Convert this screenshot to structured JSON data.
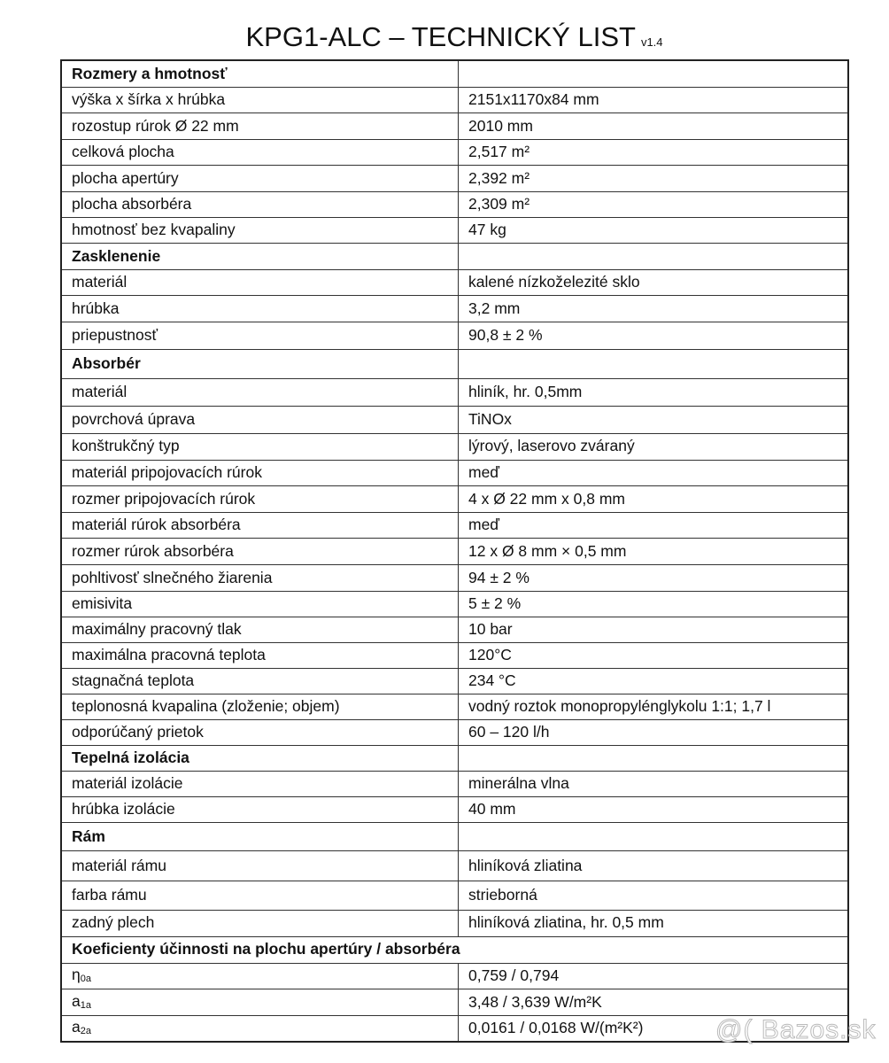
{
  "title": {
    "text": "KPG1-ALC  –  TECHNICKÝ LIST",
    "version": "v1.4"
  },
  "rows": [
    {
      "section": true,
      "label": "Rozmery a hmotnosť",
      "value": ""
    },
    {
      "label": "výška x šírka x hrúbka",
      "value": "2151x1170x84 mm"
    },
    {
      "label": "rozostup rúrok Ø 22 mm",
      "value": "2010 mm"
    },
    {
      "label": "celková plocha",
      "value": "2,517 m²"
    },
    {
      "label": "plocha apertúry",
      "value": "2,392 m²"
    },
    {
      "label": "plocha absorbéra",
      "value": "2,309 m²"
    },
    {
      "label": "hmotnosť bez kvapaliny",
      "value": "47 kg"
    },
    {
      "section": true,
      "label": "Zasklenenie",
      "value": ""
    },
    {
      "label": "materiál",
      "value": "kalené nízkoželezité sklo"
    },
    {
      "label": "hrúbka",
      "value": "3,2 mm"
    },
    {
      "label": "priepustnosť",
      "value": "90,8 ± 2 %"
    },
    {
      "section": true,
      "label": "Absorbér",
      "value": ""
    },
    {
      "label": "materiál",
      "value": "hliník, hr. 0,5mm"
    },
    {
      "label": "povrchová úprava",
      "value": "TiNOx"
    },
    {
      "label": "konštrukčný typ",
      "value": "lýrový, laserovo zváraný"
    },
    {
      "label": "materiál pripojovacích rúrok",
      "value": "meď"
    },
    {
      "label": "rozmer pripojovacích rúrok",
      "value": "4 x Ø 22 mm x 0,8 mm"
    },
    {
      "label": "materiál rúrok absorbéra",
      "value": "meď"
    },
    {
      "label": "rozmer rúrok absorbéra",
      "value": "12 x Ø 8 mm × 0,5 mm"
    },
    {
      "label": "pohltivosť slnečného žiarenia",
      "value": "94 ± 2 %"
    },
    {
      "label": "emisivita",
      "value": "5 ± 2 %"
    },
    {
      "label": "maximálny pracovný tlak",
      "value": "10 bar"
    },
    {
      "label": "maximálna pracovná teplota",
      "value": "120°C"
    },
    {
      "label": "stagnačná teplota",
      "value": "234 °C"
    },
    {
      "label": "teplonosná kvapalina (zloženie; objem)",
      "value": "vodný roztok monopropylénglykolu 1:1; 1,7 l"
    },
    {
      "label": "odporúčaný prietok",
      "value": "60 – 120 l/h"
    },
    {
      "section": true,
      "label": "Tepelná izolácia",
      "value": ""
    },
    {
      "label": "materiál izolácie",
      "value": "minerálna vlna"
    },
    {
      "label": "hrúbka izolácie",
      "value": "40 mm"
    },
    {
      "section": true,
      "label": "Rám",
      "value": ""
    },
    {
      "label": "materiál rámu",
      "value": "hliníková zliatina"
    },
    {
      "label": "farba rámu",
      "value": "strieborná"
    },
    {
      "label": "zadný plech",
      "value": "hliníková zliatina, hr. 0,5 mm"
    },
    {
      "section": true,
      "wide": true,
      "label": "Koeficienty účinnosti na plochu apertúry / absorbéra"
    },
    {
      "label": "η",
      "sub": "0a",
      "value": "0,759 / 0,794"
    },
    {
      "label": "a",
      "sub": "1a",
      "value": "3,48 / 3,639 W/m²K"
    },
    {
      "label": "a",
      "sub": "2a",
      "value": "0,0161 / 0,0168 W/(m²K²)"
    }
  ],
  "watermark": "@( Bazos.sk"
}
